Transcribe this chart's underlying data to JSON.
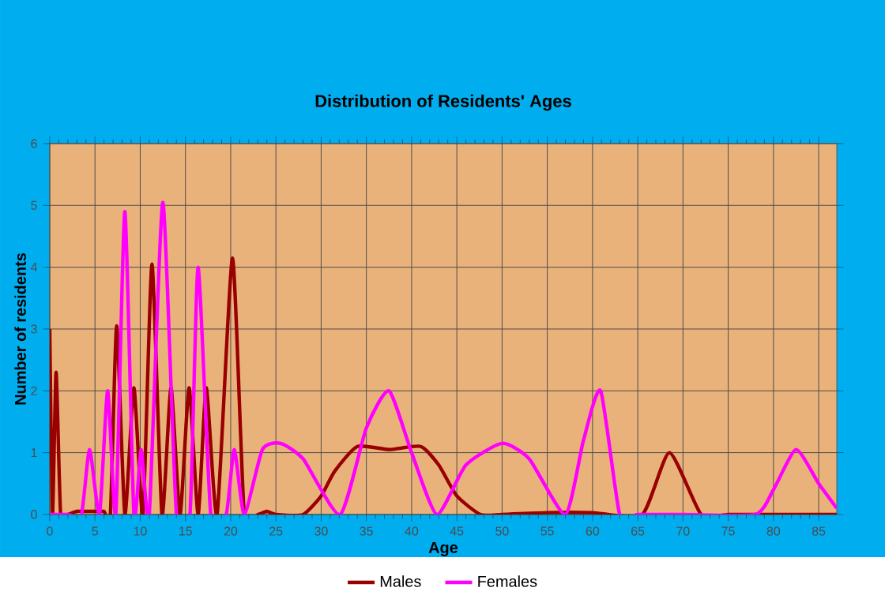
{
  "chart_data": {
    "type": "line",
    "title": "Distribution of Residents' Ages",
    "xlabel": "Age",
    "ylabel": "Number of residents",
    "xlim": [
      0,
      87
    ],
    "ylim": [
      0,
      6
    ],
    "xticks": [
      0,
      5,
      10,
      15,
      20,
      25,
      30,
      35,
      40,
      45,
      50,
      55,
      60,
      65,
      70,
      75,
      80,
      85
    ],
    "yticks": [
      0,
      1,
      2,
      3,
      4,
      5,
      6
    ],
    "grid": true,
    "legend": "bottom",
    "marker": "none",
    "line_style": "solid",
    "series": [
      {
        "name": "Males",
        "color": "#990000",
        "x": [
          0,
          0.3,
          0.7,
          1.2,
          2,
          3,
          4,
          5,
          6,
          6.7,
          7.4,
          8.3,
          9.3,
          10.3,
          11.3,
          12.4,
          13.4,
          14.4,
          15.4,
          16.4,
          17.3,
          18.5,
          20.2,
          21.5,
          23,
          24,
          25,
          28,
          30,
          31.5,
          34,
          37.5,
          41,
          43,
          45,
          47.6,
          50,
          55,
          60,
          65.5,
          68.5,
          72,
          75,
          80,
          87
        ],
        "values": [
          3,
          0,
          2.3,
          0,
          0,
          0.05,
          0.05,
          0.05,
          0.05,
          0,
          3.05,
          0,
          2.05,
          0,
          4.05,
          0,
          2.05,
          0,
          2.05,
          0,
          2.05,
          0,
          4.15,
          0,
          0,
          0.05,
          0,
          0,
          0.3,
          0.7,
          1.1,
          1.05,
          1.1,
          0.8,
          0.3,
          0,
          0,
          0.03,
          0.03,
          0,
          1.0,
          0,
          0,
          0,
          0
        ]
      },
      {
        "name": "Females",
        "color": "#ff00ff",
        "x": [
          0,
          2,
          3.5,
          4.4,
          5.5,
          6.4,
          7.3,
          8.3,
          9.3,
          10.1,
          11,
          12.5,
          14,
          15.5,
          16.4,
          17.8,
          19.5,
          20.4,
          21.5,
          23.5,
          25.5,
          28,
          32.1,
          35,
          37.5,
          40,
          42.8,
          46,
          50,
          53,
          57,
          59,
          60.9,
          63,
          65,
          70,
          78,
          80,
          82.5,
          85,
          87
        ],
        "values": [
          0,
          0,
          0,
          1.05,
          0,
          2.0,
          0,
          4.9,
          0,
          1.05,
          0,
          5.05,
          0,
          0,
          4.0,
          0,
          0,
          1.05,
          0,
          1.05,
          1.15,
          0.9,
          0,
          1.4,
          2.0,
          1.0,
          0,
          0.8,
          1.15,
          0.9,
          0,
          1.2,
          2.0,
          0,
          0,
          0,
          0,
          0.4,
          1.05,
          0.5,
          0.1
        ]
      }
    ]
  }
}
